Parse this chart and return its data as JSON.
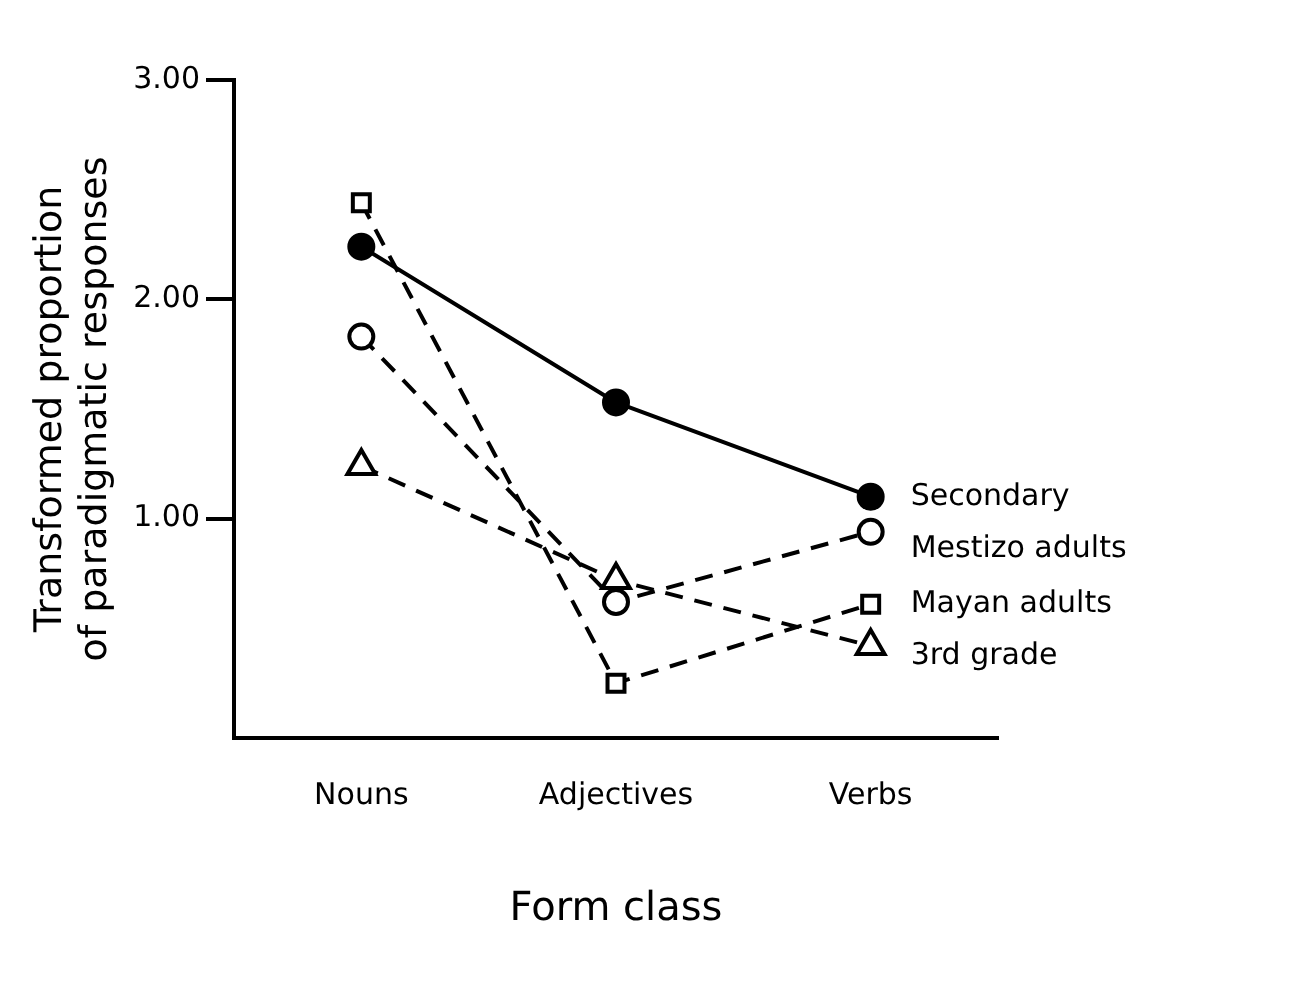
{
  "chart_data": {
    "type": "line",
    "xlabel": "Form class",
    "ylabel": "Transformed proportion of paradigmatic responses",
    "categories": [
      "Nouns",
      "Adjectives",
      "Verbs"
    ],
    "ylim": [
      0,
      3
    ],
    "yticks": [
      {
        "value": 1,
        "label": "1.00"
      },
      {
        "value": 2,
        "label": "2.00"
      },
      {
        "value": 3,
        "label": "3.00"
      }
    ],
    "grid": false,
    "legend": false,
    "series": [
      {
        "name": "Secondary",
        "color": "#000000",
        "marker": "circle",
        "line_style": "solid",
        "values": [
          2.24,
          1.53,
          1.1
        ]
      },
      {
        "name": "Mestizo adults",
        "color": "#000000",
        "marker": "circle",
        "line_style": "dashed",
        "values": [
          1.83,
          0.62,
          0.94
        ]
      },
      {
        "name": "Mayan adults",
        "color": "#000000",
        "marker": "square",
        "line_style": "dashed",
        "values": [
          2.44,
          0.25,
          0.61
        ]
      },
      {
        "name": "3rd grade",
        "color": "#000000",
        "marker": "triangle",
        "line_style": "dashed",
        "values": [
          1.24,
          0.72,
          0.42
        ]
      }
    ]
  }
}
